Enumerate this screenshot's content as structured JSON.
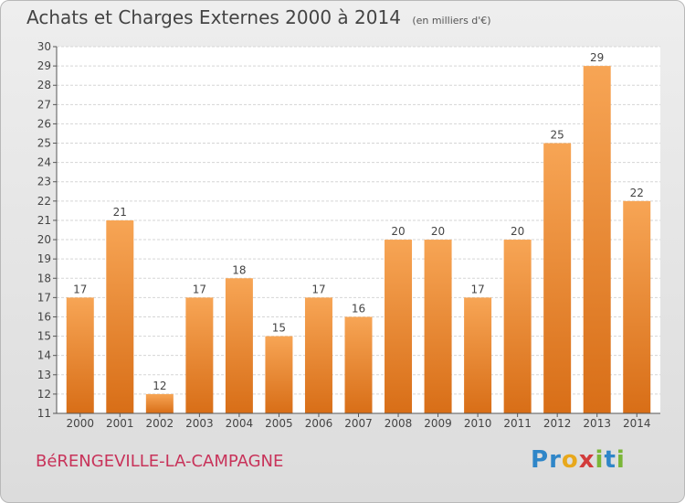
{
  "title": "Achats et Charges Externes 2000 à 2014",
  "subtitle": "(en milliers d'€)",
  "place_name": "BéRENGEVILLE-LA-CAMPAGNE",
  "logo": {
    "letters": [
      "P",
      "r",
      "o",
      "x",
      "i",
      "t",
      "i"
    ],
    "colors": [
      "#2f86c8",
      "#2f86c8",
      "#e8a81c",
      "#d23c3c",
      "#7ab637",
      "#2f86c8",
      "#7ab637"
    ]
  },
  "chart_data": {
    "type": "bar",
    "categories": [
      "2000",
      "2001",
      "2002",
      "2003",
      "2004",
      "2005",
      "2006",
      "2007",
      "2008",
      "2009",
      "2010",
      "2011",
      "2012",
      "2013",
      "2014"
    ],
    "values": [
      17,
      21,
      12,
      17,
      18,
      15,
      17,
      16,
      20,
      20,
      17,
      20,
      25,
      29,
      22
    ],
    "ylim": [
      11,
      30
    ],
    "yticks": [
      11,
      12,
      13,
      14,
      15,
      16,
      17,
      18,
      19,
      20,
      21,
      22,
      23,
      24,
      25,
      26,
      27,
      28,
      29,
      30
    ],
    "grid": true,
    "bar_color_top": "#f7a555",
    "bar_color_bottom": "#d86e17"
  }
}
